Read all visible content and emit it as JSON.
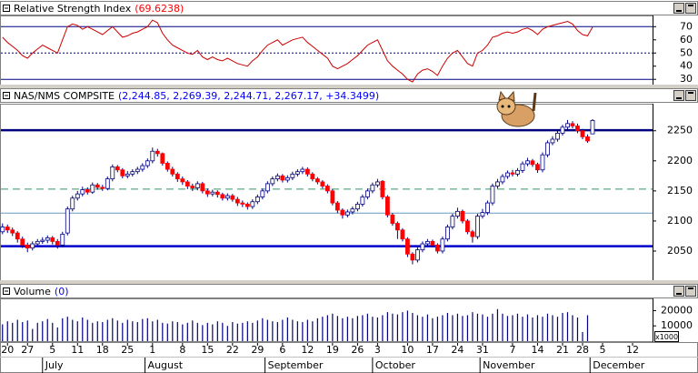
{
  "chart_data": [
    {
      "type": "line",
      "title": "Relative Strength Index",
      "title_value": "(69.6238)",
      "title_value_color": "#ff0000",
      "color": "#cc0000",
      "values": [
        62,
        58,
        55,
        52,
        48,
        46,
        50,
        53,
        56,
        54,
        52,
        50,
        60,
        70,
        72,
        71,
        68,
        70,
        68,
        66,
        64,
        67,
        70,
        66,
        62,
        63,
        65,
        66,
        68,
        70,
        75,
        73,
        65,
        60,
        56,
        54,
        52,
        50,
        49,
        52,
        47,
        45,
        47,
        45,
        44,
        46,
        44,
        42,
        41,
        40,
        44,
        47,
        52,
        56,
        58,
        60,
        56,
        58,
        60,
        61,
        62,
        58,
        55,
        52,
        49,
        46,
        40,
        38,
        40,
        42,
        45,
        48,
        52,
        56,
        58,
        60,
        52,
        44,
        40,
        37,
        34,
        30,
        28,
        34,
        37,
        38,
        36,
        33,
        40,
        46,
        50,
        52,
        47,
        42,
        40,
        50,
        52,
        56,
        62,
        63,
        65,
        66,
        65,
        66,
        68,
        69,
        67,
        64,
        68,
        70,
        71,
        72,
        73,
        74,
        72,
        67,
        64,
        63,
        69.6238
      ],
      "ylim": [
        26,
        78.5
      ],
      "yticks": [
        30,
        40,
        50,
        60,
        70
      ],
      "hlines": [
        {
          "value": 70,
          "color": "#000080",
          "style": "solid"
        },
        {
          "value": 50,
          "color": "#000080",
          "style": "dotted"
        },
        {
          "value": 30,
          "color": "#000080",
          "style": "solid"
        }
      ]
    },
    {
      "type": "candlestick",
      "title": "NAS/NMS COMPSITE",
      "title_value": "(2,244.85, 2,269.39, 2,244.71, 2,267.17, +34.3499)",
      "title_value_color": "#0000ff",
      "up_color": "#ffffff",
      "down_color": "#ff0000",
      "edge_color": "#000080",
      "open": [
        2082,
        2090,
        2085,
        2080,
        2070,
        2060,
        2055,
        2062,
        2066,
        2068,
        2072,
        2066,
        2060,
        2080,
        2120,
        2138,
        2145,
        2152,
        2148,
        2160,
        2156,
        2154,
        2170,
        2190,
        2185,
        2175,
        2178,
        2182,
        2186,
        2192,
        2200,
        2216,
        2212,
        2196,
        2186,
        2178,
        2170,
        2165,
        2158,
        2155,
        2162,
        2150,
        2145,
        2148,
        2144,
        2138,
        2142,
        2136,
        2130,
        2128,
        2124,
        2132,
        2140,
        2150,
        2162,
        2170,
        2175,
        2168,
        2172,
        2178,
        2182,
        2186,
        2178,
        2170,
        2165,
        2158,
        2150,
        2130,
        2118,
        2110,
        2115,
        2120,
        2128,
        2140,
        2150,
        2160,
        2166,
        2140,
        2110,
        2096,
        2085,
        2070,
        2045,
        2035,
        2052,
        2062,
        2066,
        2060,
        2050,
        2070,
        2090,
        2108,
        2116,
        2100,
        2082,
        2074,
        2108,
        2114,
        2130,
        2158,
        2165,
        2174,
        2180,
        2178,
        2184,
        2195,
        2200,
        2194,
        2185,
        2210,
        2230,
        2236,
        2246,
        2256,
        2262,
        2258,
        2250,
        2240,
        2244.85
      ],
      "high": [
        2096,
        2094,
        2089,
        2083,
        2074,
        2064,
        2066,
        2070,
        2073,
        2076,
        2075,
        2070,
        2082,
        2124,
        2142,
        2150,
        2157,
        2156,
        2164,
        2163,
        2160,
        2174,
        2194,
        2193,
        2188,
        2183,
        2186,
        2190,
        2196,
        2204,
        2222,
        2220,
        2214,
        2199,
        2190,
        2181,
        2174,
        2168,
        2162,
        2166,
        2165,
        2154,
        2152,
        2151,
        2147,
        2146,
        2145,
        2140,
        2134,
        2131,
        2136,
        2144,
        2154,
        2166,
        2174,
        2179,
        2178,
        2176,
        2182,
        2186,
        2190,
        2189,
        2181,
        2173,
        2168,
        2161,
        2153,
        2133,
        2121,
        2119,
        2124,
        2132,
        2144,
        2154,
        2164,
        2170,
        2168,
        2143,
        2113,
        2099,
        2088,
        2073,
        2048,
        2056,
        2066,
        2070,
        2069,
        2063,
        2074,
        2094,
        2112,
        2122,
        2119,
        2103,
        2085,
        2112,
        2120,
        2134,
        2162,
        2170,
        2178,
        2184,
        2185,
        2188,
        2199,
        2205,
        2203,
        2197,
        2214,
        2234,
        2241,
        2250,
        2260,
        2268,
        2266,
        2262,
        2253,
        2244,
        2269.39
      ],
      "low": [
        2078,
        2080,
        2075,
        2064,
        2055,
        2048,
        2051,
        2058,
        2062,
        2063,
        2061,
        2054,
        2056,
        2076,
        2116,
        2134,
        2141,
        2144,
        2145,
        2152,
        2150,
        2151,
        2166,
        2181,
        2171,
        2171,
        2174,
        2178,
        2182,
        2188,
        2196,
        2207,
        2192,
        2182,
        2174,
        2165,
        2160,
        2153,
        2150,
        2151,
        2146,
        2140,
        2141,
        2139,
        2134,
        2134,
        2132,
        2125,
        2123,
        2119,
        2120,
        2128,
        2136,
        2146,
        2158,
        2166,
        2164,
        2164,
        2168,
        2174,
        2178,
        2174,
        2166,
        2161,
        2154,
        2146,
        2126,
        2113,
        2104,
        2106,
        2111,
        2116,
        2124,
        2136,
        2146,
        2156,
        2136,
        2106,
        2092,
        2070,
        2066,
        2040,
        2028,
        2031,
        2048,
        2058,
        2056,
        2046,
        2046,
        2066,
        2086,
        2104,
        2096,
        2078,
        2064,
        2070,
        2104,
        2110,
        2126,
        2154,
        2161,
        2170,
        2174,
        2174,
        2180,
        2191,
        2190,
        2180,
        2181,
        2206,
        2226,
        2232,
        2242,
        2252,
        2254,
        2246,
        2236,
        2230,
        2244.71
      ],
      "close": [
        2090,
        2085,
        2080,
        2070,
        2060,
        2055,
        2062,
        2066,
        2068,
        2072,
        2066,
        2060,
        2078,
        2120,
        2138,
        2145,
        2152,
        2148,
        2160,
        2156,
        2154,
        2170,
        2190,
        2185,
        2175,
        2178,
        2182,
        2186,
        2192,
        2200,
        2216,
        2212,
        2196,
        2186,
        2178,
        2170,
        2165,
        2158,
        2155,
        2162,
        2150,
        2145,
        2148,
        2144,
        2138,
        2142,
        2136,
        2130,
        2128,
        2124,
        2132,
        2140,
        2150,
        2162,
        2170,
        2175,
        2168,
        2172,
        2178,
        2182,
        2186,
        2178,
        2170,
        2165,
        2158,
        2150,
        2130,
        2118,
        2110,
        2115,
        2120,
        2128,
        2140,
        2150,
        2160,
        2165,
        2140,
        2110,
        2096,
        2085,
        2070,
        2045,
        2035,
        2052,
        2062,
        2066,
        2060,
        2050,
        2070,
        2090,
        2108,
        2116,
        2100,
        2082,
        2074,
        2108,
        2114,
        2130,
        2158,
        2165,
        2174,
        2180,
        2178,
        2184,
        2195,
        2200,
        2194,
        2185,
        2210,
        2230,
        2236,
        2246,
        2256,
        2262,
        2258,
        2250,
        2240,
        2233,
        2267.17
      ],
      "ylim": [
        2000,
        2295
      ],
      "yticks": [
        2050,
        2100,
        2150,
        2200,
        2250
      ],
      "hlines": [
        {
          "value": 2251,
          "color": "#000080",
          "style": "thick"
        },
        {
          "value": 2153,
          "color": "#339966",
          "style": "dashed"
        },
        {
          "value": 2113,
          "color": "#6699bb",
          "style": "solid"
        },
        {
          "value": 2058,
          "color": "#0000cc",
          "style": "thick"
        }
      ]
    },
    {
      "type": "bar",
      "title": "Volume",
      "title_value": "(0)",
      "title_value_color": "#0000ff",
      "color": "#000080",
      "unit_label": "x1000",
      "values": [
        11000,
        13000,
        12000,
        14000,
        12500,
        13500,
        8000,
        12000,
        13000,
        14500,
        12000,
        9000,
        15000,
        16000,
        14000,
        13000,
        15500,
        14000,
        12000,
        13000,
        12500,
        14000,
        15000,
        13500,
        12000,
        14000,
        13000,
        12500,
        14500,
        15000,
        13000,
        14000,
        12000,
        11500,
        13000,
        12500,
        11000,
        12000,
        13500,
        12000,
        10500,
        12000,
        11000,
        13000,
        12000,
        10000,
        12500,
        11500,
        12000,
        13000,
        12000,
        13500,
        15000,
        14000,
        13000,
        12500,
        14000,
        15500,
        14000,
        13000,
        12500,
        14000,
        13000,
        15000,
        16000,
        17000,
        18000,
        16500,
        15000,
        16000,
        15000,
        16500,
        17000,
        18000,
        16000,
        15500,
        17000,
        19000,
        18000,
        17500,
        19000,
        20000,
        18500,
        17000,
        16000,
        17500,
        15000,
        16000,
        17000,
        18500,
        17000,
        18000,
        16500,
        17000,
        19000,
        18000,
        17500,
        16000,
        18000,
        21000,
        18000,
        16500,
        17000,
        18000,
        16000,
        17500,
        15500,
        17000,
        16000,
        18000,
        17000,
        16000,
        18500,
        19000,
        17000,
        15500,
        6000,
        17000,
        0
      ],
      "ylim": [
        0,
        28000
      ],
      "yticks": [
        10000,
        20000
      ]
    }
  ],
  "x_axis": {
    "xlim": [
      -0.5,
      130
    ],
    "ticks": [
      {
        "value": 1,
        "label": "20"
      },
      {
        "value": 5,
        "label": "27"
      },
      {
        "value": 10,
        "label": "5"
      },
      {
        "value": 15,
        "label": "11"
      },
      {
        "value": 20,
        "label": "18"
      },
      {
        "value": 25,
        "label": "25"
      },
      {
        "value": 30,
        "label": "1"
      },
      {
        "value": 36,
        "label": "8"
      },
      {
        "value": 41,
        "label": "15"
      },
      {
        "value": 46,
        "label": "22"
      },
      {
        "value": 51,
        "label": "29"
      },
      {
        "value": 56,
        "label": "6"
      },
      {
        "value": 61,
        "label": "12"
      },
      {
        "value": 66,
        "label": "19"
      },
      {
        "value": 71,
        "label": "26"
      },
      {
        "value": 75,
        "label": "3"
      },
      {
        "value": 81,
        "label": "10"
      },
      {
        "value": 86,
        "label": "17"
      },
      {
        "value": 91,
        "label": "24"
      },
      {
        "value": 96,
        "label": "31"
      },
      {
        "value": 102,
        "label": "7"
      },
      {
        "value": 107,
        "label": "14"
      },
      {
        "value": 112,
        "label": "21"
      },
      {
        "value": 116,
        "label": "28"
      },
      {
        "value": 120,
        "label": "5"
      },
      {
        "value": 126,
        "label": "12"
      }
    ],
    "months": [
      {
        "value": 8,
        "label": "July"
      },
      {
        "value": 28.5,
        "label": "August"
      },
      {
        "value": 52.5,
        "label": "September"
      },
      {
        "value": 74,
        "label": "October"
      },
      {
        "value": 95.5,
        "label": "November"
      },
      {
        "value": 117.5,
        "label": "December"
      }
    ]
  }
}
